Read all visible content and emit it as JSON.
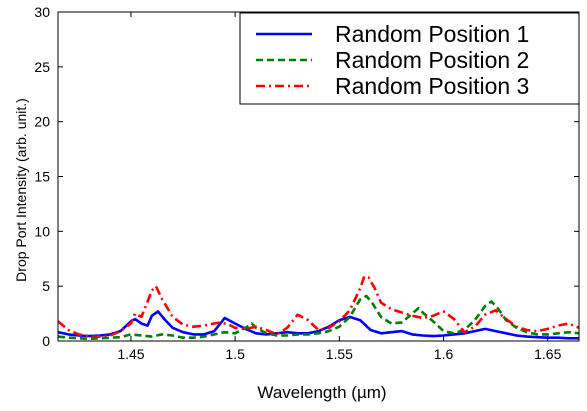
{
  "chart_data": {
    "type": "line",
    "xlabel": "Wavelength (µm)",
    "ylabel": "Drop Port Intensity (arb. unit.)",
    "xlim": [
      1.415,
      1.665
    ],
    "ylim": [
      0,
      30
    ],
    "xticks": [
      1.45,
      1.5,
      1.55,
      1.6,
      1.65
    ],
    "xtick_labels": [
      "1.45",
      "1.5",
      "1.55",
      "1.6",
      "1.65"
    ],
    "yticks": [
      0,
      5,
      10,
      15,
      20,
      25,
      30
    ],
    "ytick_labels": [
      "0",
      "5",
      "10",
      "15",
      "20",
      "25",
      "30"
    ],
    "grid": false,
    "legend_position": "top-right",
    "series": [
      {
        "name": "Random Position 1",
        "color": "#0000ff",
        "style": "solid",
        "x": [
          1.415,
          1.42,
          1.425,
          1.43,
          1.435,
          1.44,
          1.445,
          1.45,
          1.452,
          1.455,
          1.458,
          1.46,
          1.463,
          1.466,
          1.47,
          1.475,
          1.48,
          1.485,
          1.49,
          1.495,
          1.5,
          1.505,
          1.51,
          1.515,
          1.52,
          1.525,
          1.53,
          1.535,
          1.54,
          1.545,
          1.55,
          1.555,
          1.56,
          1.565,
          1.57,
          1.575,
          1.58,
          1.585,
          1.59,
          1.595,
          1.6,
          1.605,
          1.61,
          1.615,
          1.62,
          1.625,
          1.63,
          1.635,
          1.64,
          1.645,
          1.65,
          1.655,
          1.66,
          1.665
        ],
        "y": [
          0.8,
          0.6,
          0.5,
          0.45,
          0.5,
          0.6,
          0.9,
          1.8,
          2.0,
          1.6,
          1.4,
          2.3,
          2.7,
          2.0,
          1.2,
          0.8,
          0.6,
          0.6,
          0.9,
          2.1,
          1.6,
          1.1,
          0.7,
          0.6,
          0.7,
          0.8,
          0.7,
          0.7,
          0.9,
          1.3,
          1.9,
          2.2,
          1.9,
          1.0,
          0.7,
          0.8,
          0.9,
          0.6,
          0.5,
          0.45,
          0.5,
          0.6,
          0.7,
          0.9,
          1.1,
          0.9,
          0.7,
          0.5,
          0.4,
          0.35,
          0.3,
          0.3,
          0.25,
          0.25
        ]
      },
      {
        "name": "Random Position 2",
        "color": "#007f00",
        "style": "dashed",
        "x": [
          1.415,
          1.42,
          1.425,
          1.43,
          1.435,
          1.44,
          1.445,
          1.45,
          1.455,
          1.46,
          1.465,
          1.47,
          1.475,
          1.48,
          1.485,
          1.49,
          1.495,
          1.5,
          1.505,
          1.508,
          1.51,
          1.515,
          1.52,
          1.525,
          1.53,
          1.535,
          1.54,
          1.545,
          1.55,
          1.555,
          1.56,
          1.563,
          1.566,
          1.57,
          1.575,
          1.58,
          1.585,
          1.588,
          1.59,
          1.595,
          1.6,
          1.605,
          1.61,
          1.615,
          1.62,
          1.623,
          1.626,
          1.63,
          1.635,
          1.64,
          1.645,
          1.65,
          1.655,
          1.66,
          1.665
        ],
        "y": [
          0.4,
          0.3,
          0.25,
          0.2,
          0.25,
          0.3,
          0.35,
          0.6,
          0.5,
          0.4,
          0.6,
          0.5,
          0.3,
          0.3,
          0.4,
          0.6,
          0.8,
          0.7,
          1.2,
          1.6,
          1.2,
          0.7,
          0.5,
          0.5,
          0.6,
          0.6,
          0.7,
          0.9,
          1.3,
          2.2,
          3.8,
          4.1,
          3.4,
          2.2,
          1.6,
          1.7,
          2.5,
          3.0,
          2.6,
          1.8,
          0.9,
          0.7,
          1.0,
          1.9,
          3.2,
          3.6,
          3.0,
          1.9,
          1.2,
          0.8,
          0.6,
          0.6,
          0.7,
          0.8,
          0.7
        ]
      },
      {
        "name": "Random Position 3",
        "color": "#ff0000",
        "style": "dashdot",
        "x": [
          1.415,
          1.42,
          1.425,
          1.43,
          1.435,
          1.44,
          1.445,
          1.45,
          1.452,
          1.455,
          1.458,
          1.46,
          1.462,
          1.465,
          1.47,
          1.475,
          1.48,
          1.485,
          1.49,
          1.493,
          1.497,
          1.5,
          1.505,
          1.51,
          1.515,
          1.52,
          1.525,
          1.53,
          1.535,
          1.54,
          1.545,
          1.55,
          1.555,
          1.56,
          1.562,
          1.564,
          1.567,
          1.57,
          1.575,
          1.58,
          1.585,
          1.59,
          1.595,
          1.6,
          1.605,
          1.61,
          1.615,
          1.62,
          1.625,
          1.63,
          1.635,
          1.64,
          1.645,
          1.65,
          1.655,
          1.66,
          1.665
        ],
        "y": [
          1.8,
          1.0,
          0.6,
          0.4,
          0.4,
          0.5,
          0.9,
          1.6,
          2.5,
          2.2,
          3.6,
          4.6,
          5.0,
          3.8,
          2.2,
          1.5,
          1.3,
          1.4,
          1.6,
          1.7,
          1.5,
          1.2,
          1.1,
          1.3,
          1.0,
          0.6,
          1.2,
          2.4,
          1.9,
          1.0,
          1.2,
          1.8,
          2.8,
          4.8,
          5.9,
          5.8,
          4.8,
          3.5,
          2.9,
          2.6,
          2.3,
          2.1,
          2.3,
          2.7,
          2.0,
          0.8,
          1.3,
          2.4,
          2.8,
          2.0,
          1.3,
          1.0,
          0.9,
          1.1,
          1.4,
          1.6,
          1.2
        ]
      }
    ]
  }
}
